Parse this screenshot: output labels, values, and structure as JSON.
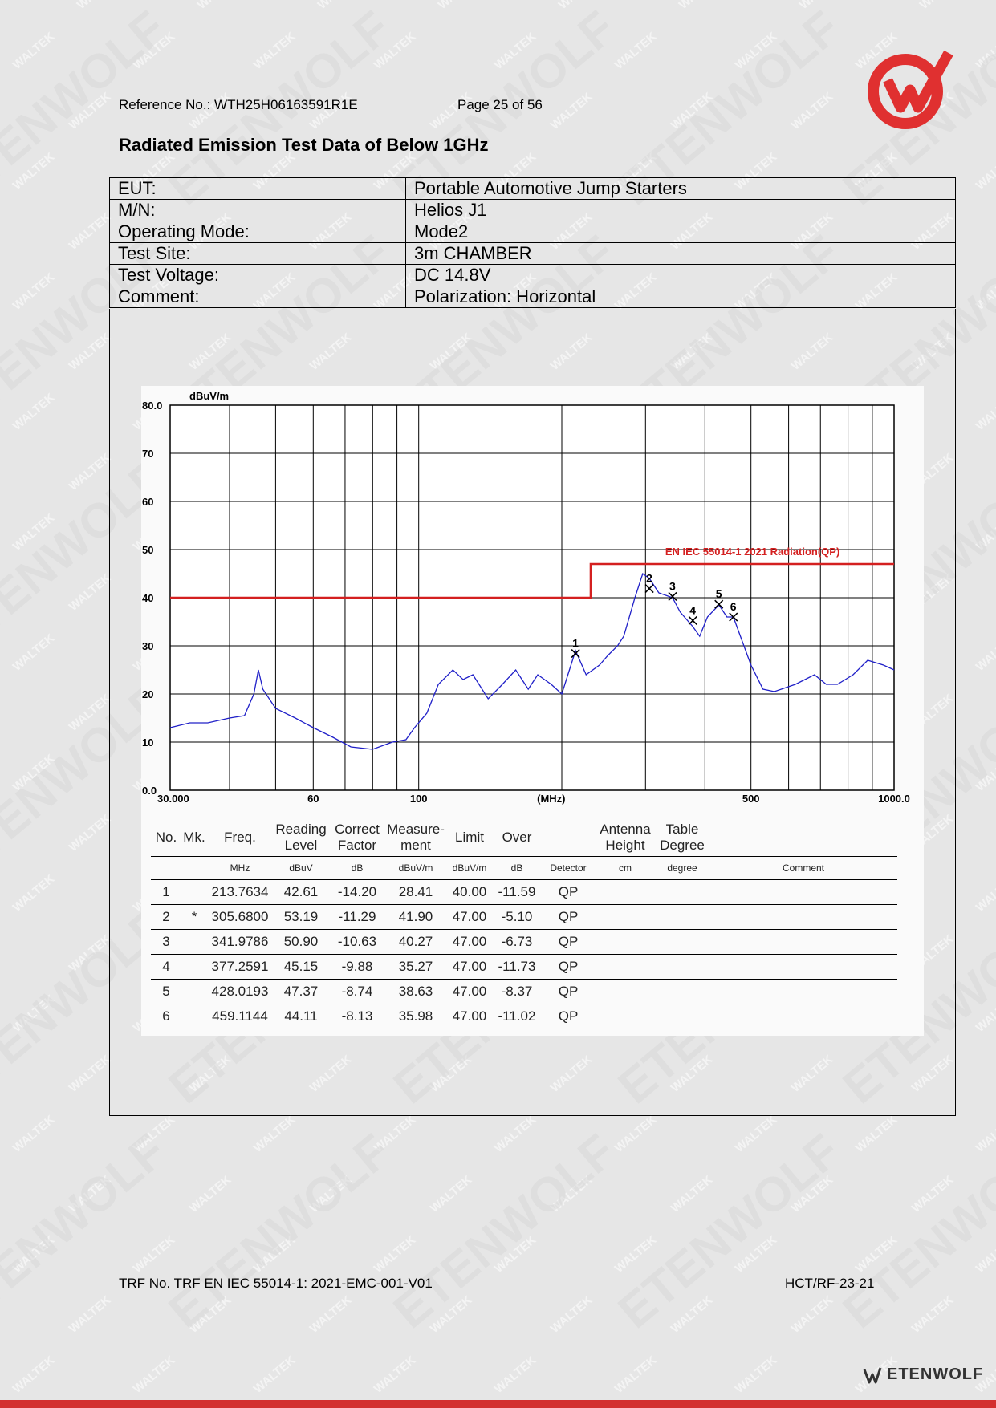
{
  "header": {
    "reference": "Reference No.: WTH25H06163591R1E",
    "page": "Page 25 of 56"
  },
  "brand": {
    "accent": "#e03030",
    "watermark_small": "WALTEK",
    "watermark_big": "ETENWOLF",
    "footer_logo_text": "ETENWOLF"
  },
  "title": "Radiated Emission Test Data of Below 1GHz",
  "info": [
    {
      "label": "EUT:",
      "value": "Portable Automotive Jump Starters"
    },
    {
      "label": "M/N:",
      "value": "Helios J1"
    },
    {
      "label": "Operating Mode:",
      "value": "Mode2"
    },
    {
      "label": "Test Site:",
      "value": "3m CHAMBER"
    },
    {
      "label": "Test Voltage:",
      "value": "DC 14.8V"
    },
    {
      "label": "Comment:",
      "value": "Polarization: Horizontal"
    }
  ],
  "chart_data": {
    "type": "line",
    "title": "",
    "xlabel": "(MHz)",
    "ylabel": "dBuV/m",
    "x_scale": "log",
    "xlim": [
      30,
      1000
    ],
    "ylim": [
      0,
      80
    ],
    "x_tick_labels": [
      "30.000",
      "60",
      "100",
      "(MHz)",
      "500",
      "1000.0"
    ],
    "y_tick_labels": [
      "80.0",
      "70",
      "60",
      "50",
      "40",
      "30",
      "20",
      "10",
      "0.0"
    ],
    "limit_line": {
      "name": "EN IEC 55014-1 2021 Radiation(QP)",
      "color": "#d42020",
      "points": [
        [
          30,
          40
        ],
        [
          230,
          40
        ],
        [
          230,
          47
        ],
        [
          1000,
          47
        ]
      ]
    },
    "series": [
      {
        "color": "#2020c8",
        "points": [
          [
            30,
            13
          ],
          [
            33,
            14
          ],
          [
            36,
            14
          ],
          [
            40,
            15
          ],
          [
            43,
            15.5
          ],
          [
            45,
            20
          ],
          [
            46,
            25
          ],
          [
            47,
            21
          ],
          [
            50,
            17
          ],
          [
            55,
            15
          ],
          [
            60,
            13
          ],
          [
            66,
            11
          ],
          [
            72,
            9
          ],
          [
            80,
            8.5
          ],
          [
            88,
            10
          ],
          [
            94,
            10.5
          ],
          [
            98,
            13
          ],
          [
            104,
            16
          ],
          [
            110,
            22
          ],
          [
            118,
            25
          ],
          [
            124,
            23
          ],
          [
            130,
            24
          ],
          [
            140,
            19
          ],
          [
            150,
            22
          ],
          [
            160,
            25
          ],
          [
            170,
            21
          ],
          [
            178,
            24
          ],
          [
            190,
            22
          ],
          [
            200,
            20
          ],
          [
            213.76,
            29
          ],
          [
            225,
            24
          ],
          [
            240,
            26
          ],
          [
            250,
            28
          ],
          [
            262,
            30
          ],
          [
            270,
            32
          ],
          [
            285,
            40
          ],
          [
            296,
            45
          ],
          [
            305.68,
            44
          ],
          [
            320,
            41
          ],
          [
            341.98,
            40
          ],
          [
            355,
            37
          ],
          [
            377.26,
            34
          ],
          [
            390,
            32
          ],
          [
            405,
            36
          ],
          [
            428.02,
            38.5
          ],
          [
            445,
            36
          ],
          [
            459.11,
            36
          ],
          [
            475,
            32
          ],
          [
            500,
            26
          ],
          [
            530,
            21
          ],
          [
            560,
            20.5
          ],
          [
            620,
            22
          ],
          [
            680,
            24
          ],
          [
            720,
            22
          ],
          [
            760,
            22
          ],
          [
            820,
            24
          ],
          [
            880,
            27
          ],
          [
            950,
            26
          ],
          [
            1000,
            25
          ]
        ]
      }
    ],
    "markers": [
      {
        "no": "1",
        "freq": 213.7634,
        "level": 28.41
      },
      {
        "no": "2",
        "freq": 305.68,
        "level": 41.9
      },
      {
        "no": "3",
        "freq": 341.9786,
        "level": 40.27
      },
      {
        "no": "4",
        "freq": 377.2591,
        "level": 35.27
      },
      {
        "no": "5",
        "freq": 428.0193,
        "level": 38.63
      },
      {
        "no": "6",
        "freq": 459.1144,
        "level": 35.98
      }
    ]
  },
  "table": {
    "headers": {
      "no": "No.",
      "mk": "Mk.",
      "freq": "Freq.",
      "reading": "Reading Level",
      "correct": "Correct Factor",
      "measure": "Measure- ment",
      "limit": "Limit",
      "over": "Over",
      "antenna": "Antenna Height",
      "table_deg": "Table Degree"
    },
    "units": {
      "freq": "MHz",
      "reading": "dBuV",
      "correct": "dB",
      "measure": "dBuV/m",
      "limit": "dBuV/m",
      "over": "dB",
      "detector": "Detector",
      "antenna": "cm",
      "table_deg": "degree",
      "comment": "Comment"
    },
    "rows": [
      {
        "no": "1",
        "mk": "",
        "freq": "213.7634",
        "reading": "42.61",
        "correct": "-14.20",
        "measure": "28.41",
        "limit": "40.00",
        "over": "-11.59",
        "detector": "QP"
      },
      {
        "no": "2",
        "mk": "*",
        "freq": "305.6800",
        "reading": "53.19",
        "correct": "-11.29",
        "measure": "41.90",
        "limit": "47.00",
        "over": "-5.10",
        "detector": "QP"
      },
      {
        "no": "3",
        "mk": "",
        "freq": "341.9786",
        "reading": "50.90",
        "correct": "-10.63",
        "measure": "40.27",
        "limit": "47.00",
        "over": "-6.73",
        "detector": "QP"
      },
      {
        "no": "4",
        "mk": "",
        "freq": "377.2591",
        "reading": "45.15",
        "correct": "-9.88",
        "measure": "35.27",
        "limit": "47.00",
        "over": "-11.73",
        "detector": "QP"
      },
      {
        "no": "5",
        "mk": "",
        "freq": "428.0193",
        "reading": "47.37",
        "correct": "-8.74",
        "measure": "38.63",
        "limit": "47.00",
        "over": "-8.37",
        "detector": "QP"
      },
      {
        "no": "6",
        "mk": "",
        "freq": "459.1144",
        "reading": "44.11",
        "correct": "-8.13",
        "measure": "35.98",
        "limit": "47.00",
        "over": "-11.02",
        "detector": "QP"
      }
    ]
  },
  "footer": {
    "trf": "TRF No. TRF EN IEC 55014-1: 2021-EMC-001-V01",
    "code": "HCT/RF-23-21"
  }
}
